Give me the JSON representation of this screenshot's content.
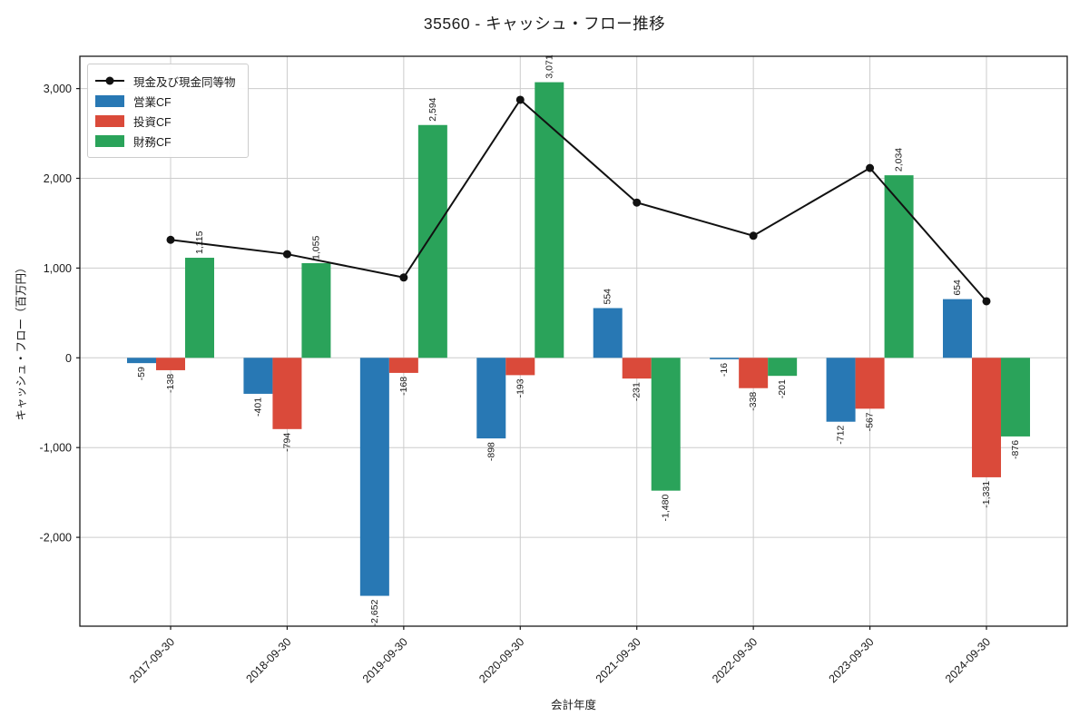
{
  "title": "35560 - キャッシュ・フロー推移",
  "chart_data": {
    "type": "bar",
    "subtype": "grouped bars with overlay line",
    "title": "35560 - キャッシュ・フロー推移",
    "xlabel": "会計年度",
    "ylabel": "キャッシュ・フロー（百万円）",
    "categories": [
      "2017-09-30",
      "2018-09-30",
      "2019-09-30",
      "2020-09-30",
      "2021-09-30",
      "2022-09-30",
      "2023-09-30",
      "2024-09-30"
    ],
    "series": [
      {
        "name": "営業CF",
        "color": "#2878b4",
        "values": [
          -59,
          -401,
          -2652,
          -898,
          554,
          -16,
          -712,
          654
        ]
      },
      {
        "name": "投資CF",
        "color": "#da4a3a",
        "values": [
          -138,
          -794,
          -168,
          -193,
          -231,
          -338,
          -567,
          -1331
        ]
      },
      {
        "name": "財務CF",
        "color": "#2aa35a",
        "values": [
          1115,
          1055,
          2594,
          3071,
          -1480,
          -201,
          2034,
          -876
        ]
      }
    ],
    "line": {
      "name": "現金及び現金同等物",
      "color": "#111111",
      "marker": "circle",
      "values": [
        1315,
        1155,
        895,
        2875,
        1730,
        1360,
        2115,
        630
      ],
      "note": "line point values estimated from gridlines; not labeled in figure"
    },
    "bar_labels": [
      "-59",
      "-401",
      "-2,652",
      "-898",
      "554",
      "-16",
      "-712",
      "654",
      "-138",
      "-794",
      "-168",
      "-193",
      "-231",
      "-338",
      "-567",
      "-1,331",
      "1,115",
      "1,055",
      "2,594",
      "3,071",
      "-1,480",
      "-201",
      "2,034",
      "-876"
    ],
    "yticks": [
      -2000,
      -1000,
      0,
      1000,
      2000,
      3000
    ],
    "ytick_labels": [
      "-2,000",
      "-1,000",
      "0",
      "1,000",
      "2,000",
      "3,000"
    ],
    "ylim": [
      -2990,
      3360
    ],
    "grid": true,
    "grid_color": "#cccccc",
    "spine_color": "#1a1a1a",
    "legend_position": "upper left",
    "x_tick_rotation_deg": 45
  }
}
